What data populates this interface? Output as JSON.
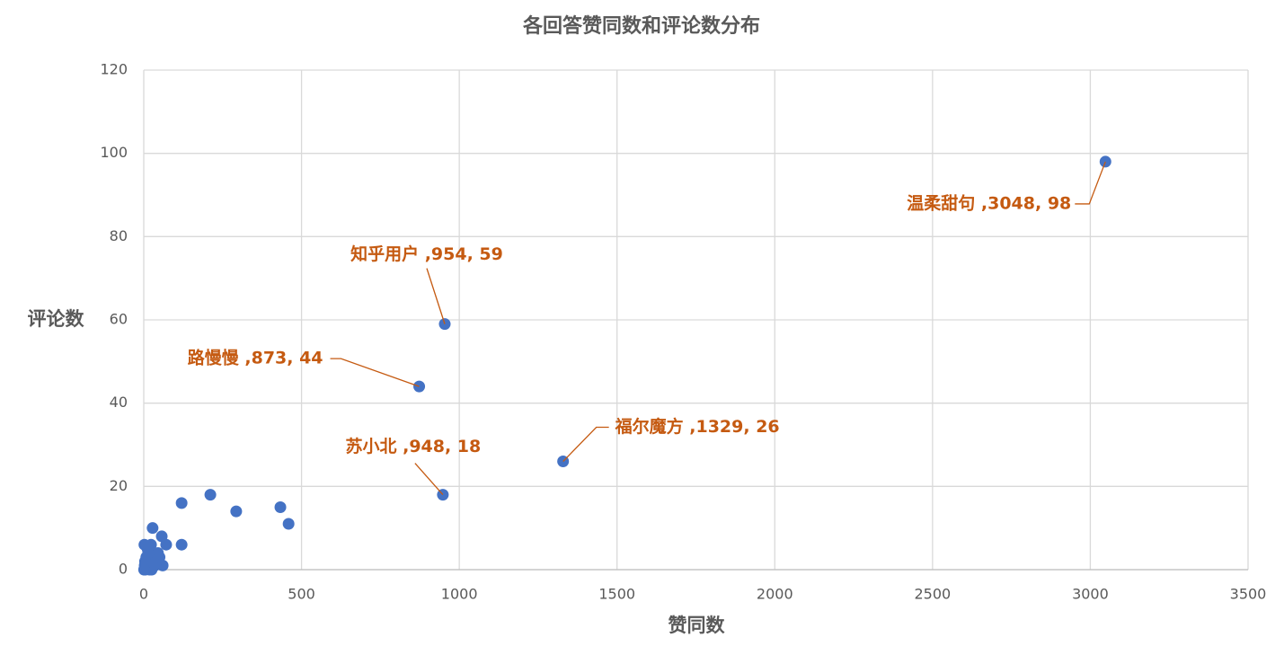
{
  "chart_data": {
    "type": "scatter",
    "title": "各回答赞同数和评论数分布",
    "x_label": "赞同数",
    "y_label": "评论数",
    "x": [
      3048,
      954,
      873,
      948,
      1329,
      120,
      211,
      293,
      433,
      459,
      120,
      71,
      57,
      28,
      2,
      23,
      60,
      5,
      10,
      15,
      20,
      25,
      30,
      35,
      40,
      45,
      8,
      12,
      18,
      22,
      3,
      6,
      50,
      14,
      28,
      2,
      4,
      1
    ],
    "values": [
      98,
      59,
      44,
      18,
      26,
      16,
      18,
      14,
      15,
      11,
      6,
      6,
      8,
      10,
      6,
      6,
      1,
      0,
      1,
      2,
      3,
      0,
      4,
      1,
      2,
      4,
      3,
      5,
      0,
      2,
      1,
      2,
      3,
      4,
      1,
      0,
      2,
      0
    ],
    "value_labels": [
      "温柔甜句 ,3048, 98",
      "知乎用户 ,954, 59",
      "路慢慢 ,873, 44",
      "苏小北 ,948, 18",
      "福尔魔方 ,1329, 26",
      null,
      null,
      null,
      null,
      null,
      null,
      null,
      null,
      null,
      null,
      null,
      null,
      null,
      null,
      null,
      null,
      null,
      null,
      null,
      null,
      null,
      null,
      null,
      null,
      null,
      null,
      null,
      null,
      null,
      null,
      null,
      null,
      null
    ],
    "color": "#4472c4",
    "label_color": "#c55a11",
    "xlim": [
      0,
      3500
    ],
    "xticks": [
      0,
      500,
      1000,
      1500,
      2000,
      2500,
      3000,
      3500
    ],
    "ylim": [
      0,
      120
    ],
    "yticks": [
      0,
      20,
      40,
      60,
      80,
      100,
      120
    ],
    "grid": true
  }
}
